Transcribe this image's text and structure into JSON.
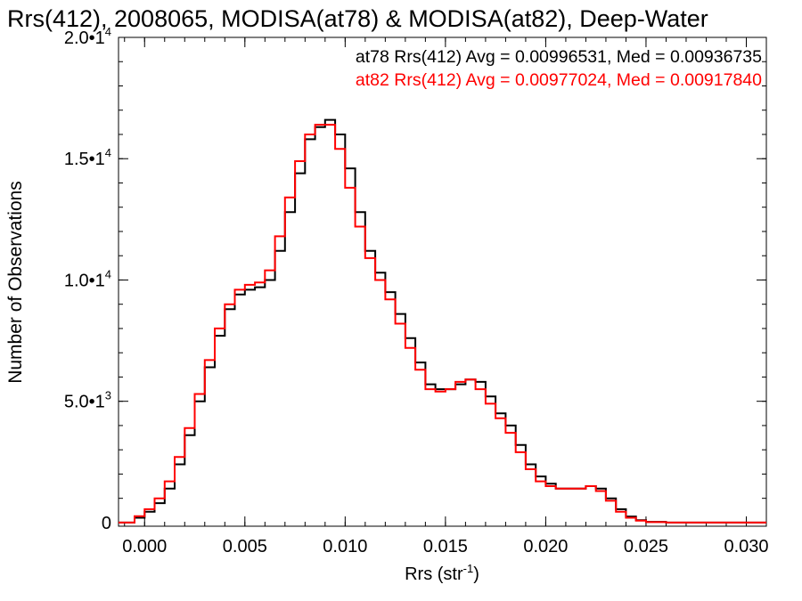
{
  "chart_data": {
    "type": "line",
    "title": "Rrs(412), 2008065, MODISA(at78) & MODISA(at82), Deep-Water",
    "xlabel": "Rrs (str",
    "xlabel_sup": "-1",
    "xlabel_close": ")",
    "ylabel": "Number of Observations",
    "xlim": [
      -0.0013,
      0.031
    ],
    "ylim": [
      -150,
      20000
    ],
    "x_ticks": [
      0.0,
      0.005,
      0.01,
      0.015,
      0.02,
      0.025,
      0.03
    ],
    "x_tick_labels": [
      "0.000",
      "0.005",
      "0.010",
      "0.015",
      "0.020",
      "0.025",
      "0.030"
    ],
    "y_ticks": [
      0,
      5000,
      10000,
      15000,
      20000
    ],
    "y_tick_labels": [
      {
        "base": "0",
        "exp": ""
      },
      {
        "base": "5.0•1",
        "exp": "3"
      },
      {
        "base": "1.0•1",
        "exp": "4"
      },
      {
        "base": "1.5•1",
        "exp": "4"
      },
      {
        "base": "2.0•1",
        "exp": "4"
      }
    ],
    "x_minor_step": 0.001,
    "y_minor_step": 1000,
    "grid": false,
    "annotations": [
      "at78 Rrs(412) Avg = 0.00996531, Med = 0.00936735",
      "at82 Rrs(412) Avg = 0.00977024, Med = 0.00917840"
    ],
    "series": [
      {
        "name": "at78",
        "color": "#000000",
        "x": [
          -0.0013,
          -0.0005,
          0.0,
          0.0005,
          0.001,
          0.0015,
          0.002,
          0.0025,
          0.003,
          0.0035,
          0.004,
          0.0045,
          0.005,
          0.0055,
          0.006,
          0.0065,
          0.007,
          0.0075,
          0.008,
          0.0085,
          0.009,
          0.0095,
          0.01,
          0.0105,
          0.011,
          0.0115,
          0.012,
          0.0125,
          0.013,
          0.0135,
          0.014,
          0.0145,
          0.015,
          0.0155,
          0.016,
          0.0165,
          0.017,
          0.0175,
          0.018,
          0.0185,
          0.019,
          0.0195,
          0.02,
          0.0205,
          0.021,
          0.0215,
          0.022,
          0.0225,
          0.023,
          0.0235,
          0.024,
          0.0245,
          0.025,
          0.026,
          0.027,
          0.028,
          0.029,
          0.03,
          0.031
        ],
        "y": [
          0,
          200,
          450,
          800,
          1400,
          2400,
          3600,
          5000,
          6400,
          7700,
          8800,
          9400,
          9600,
          9700,
          10000,
          11200,
          12800,
          14400,
          15800,
          16300,
          16600,
          16000,
          14600,
          12800,
          11200,
          10300,
          9500,
          8600,
          7600,
          6600,
          5700,
          5500,
          5500,
          5700,
          5900,
          5800,
          5200,
          4500,
          4000,
          3200,
          2400,
          1900,
          1600,
          1400,
          1400,
          1400,
          1500,
          1400,
          1000,
          550,
          250,
          100,
          30,
          0,
          0,
          0,
          0,
          0,
          0
        ]
      },
      {
        "name": "at82",
        "color": "#ff0000",
        "x": [
          -0.0013,
          -0.0005,
          0.0,
          0.0005,
          0.001,
          0.0015,
          0.002,
          0.0025,
          0.003,
          0.0035,
          0.004,
          0.0045,
          0.005,
          0.0055,
          0.006,
          0.0065,
          0.007,
          0.0075,
          0.008,
          0.0085,
          0.009,
          0.0095,
          0.01,
          0.0105,
          0.011,
          0.0115,
          0.012,
          0.0125,
          0.013,
          0.0135,
          0.014,
          0.0145,
          0.015,
          0.0155,
          0.016,
          0.0165,
          0.017,
          0.0175,
          0.018,
          0.0185,
          0.019,
          0.0195,
          0.02,
          0.0205,
          0.021,
          0.0215,
          0.022,
          0.0225,
          0.023,
          0.0235,
          0.024,
          0.0245,
          0.025,
          0.026,
          0.027,
          0.028,
          0.029,
          0.03,
          0.031
        ],
        "y": [
          0,
          260,
          550,
          1000,
          1700,
          2700,
          3900,
          5300,
          6700,
          8000,
          9000,
          9600,
          9800,
          9900,
          10400,
          11800,
          13400,
          14900,
          16000,
          16400,
          16400,
          15400,
          13800,
          12200,
          10900,
          10000,
          9200,
          8200,
          7200,
          6300,
          5500,
          5400,
          5500,
          5800,
          5900,
          5500,
          4900,
          4300,
          3700,
          2900,
          2200,
          1700,
          1500,
          1400,
          1400,
          1400,
          1500,
          1300,
          900,
          450,
          200,
          80,
          20,
          0,
          0,
          0,
          0,
          0,
          0
        ]
      }
    ]
  }
}
